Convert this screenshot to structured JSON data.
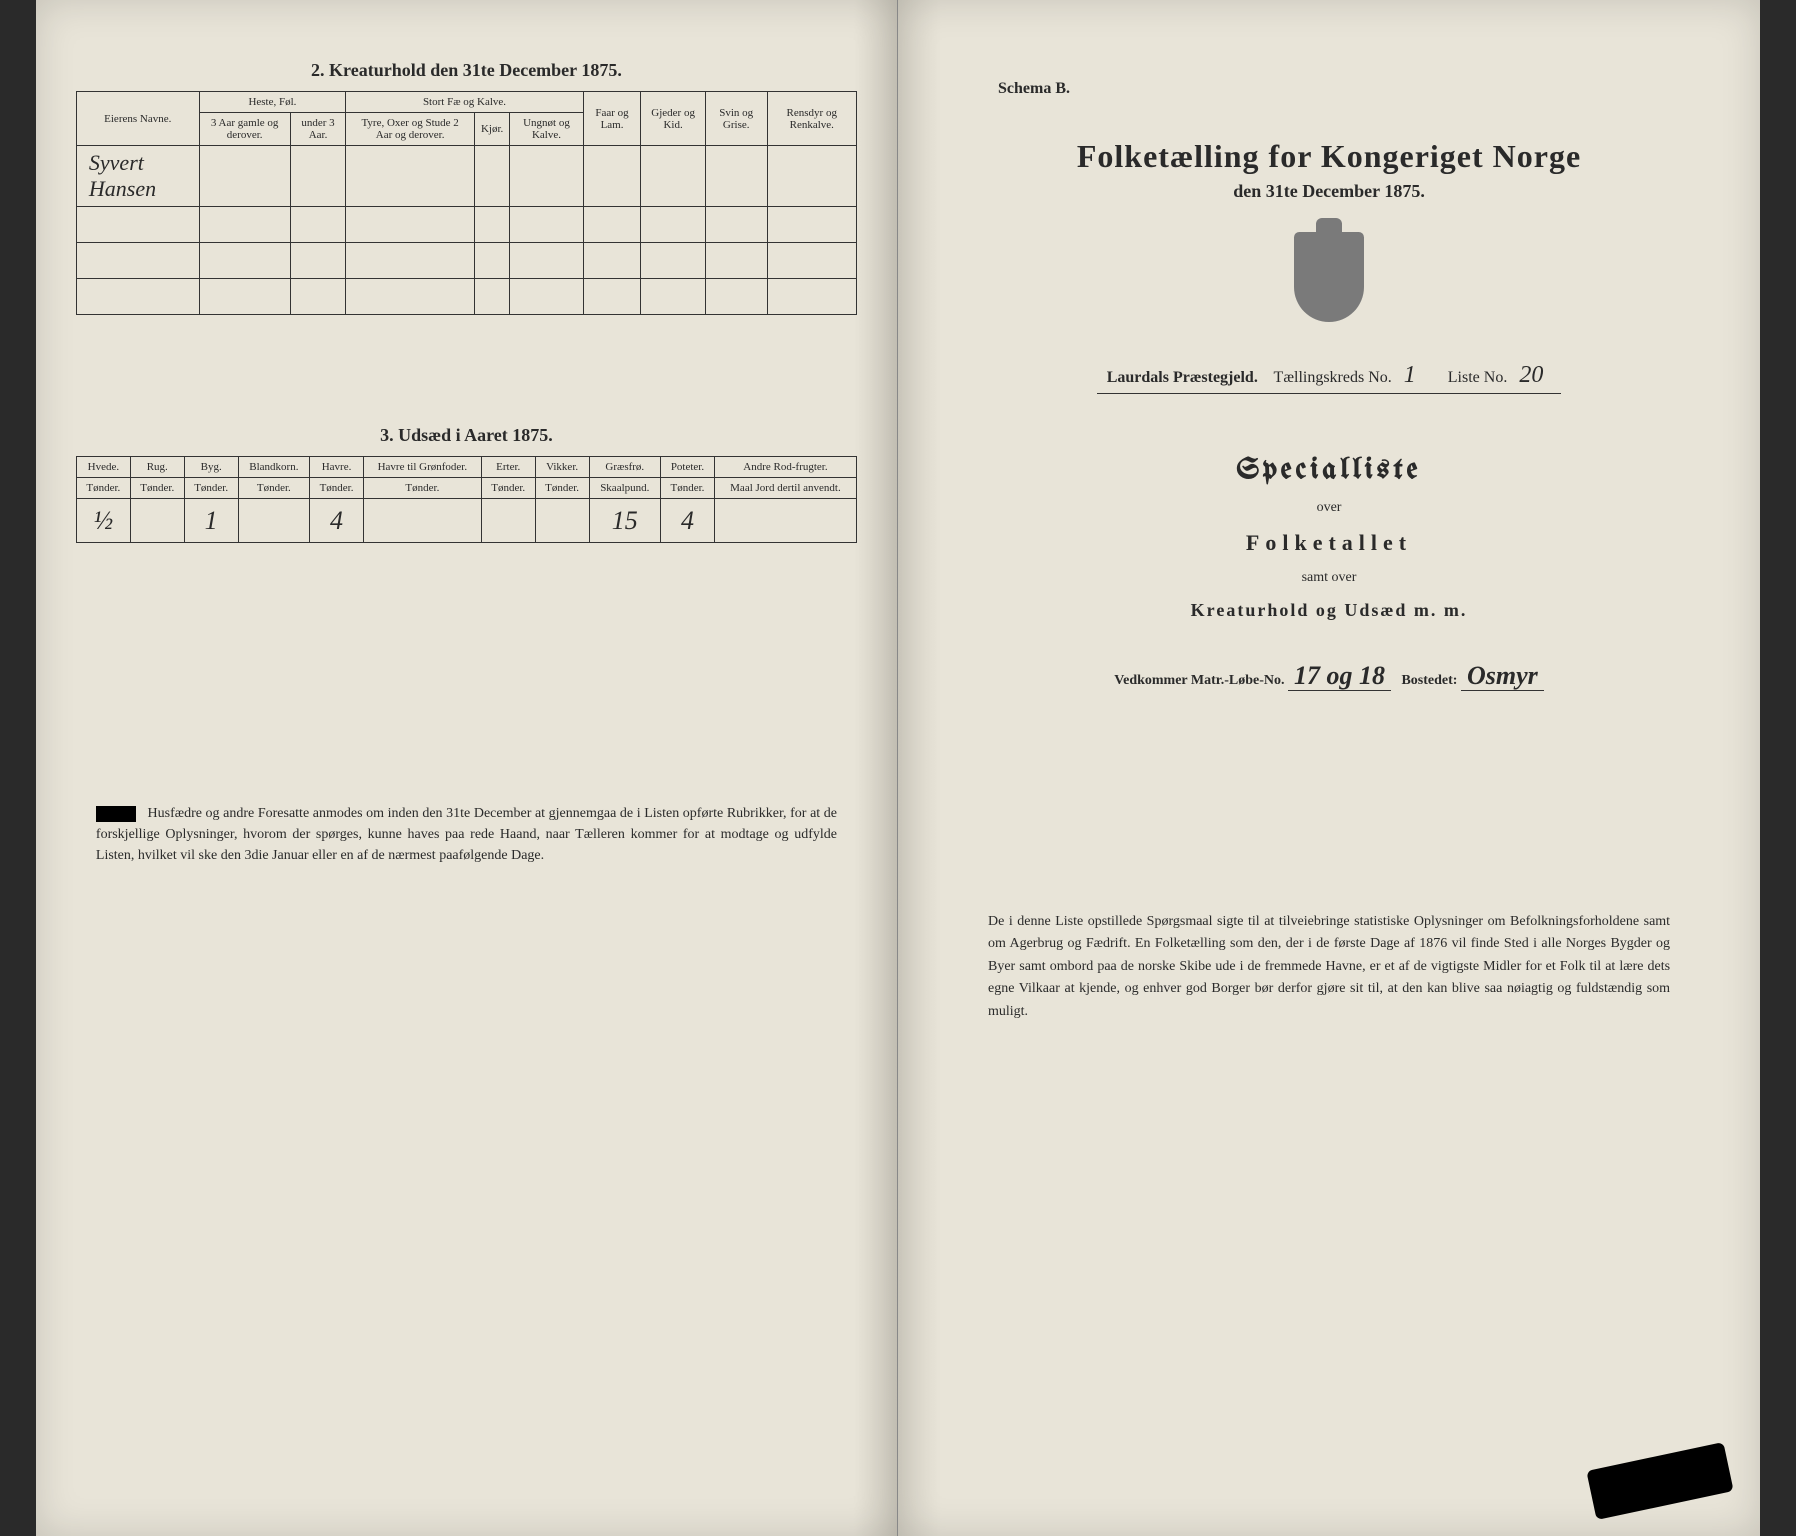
{
  "left": {
    "section2_title": "2. Kreaturhold den 31te December 1875.",
    "table2": {
      "col_eier": "Eierens Navne.",
      "grp_heste": "Heste, Føl.",
      "grp_stort": "Stort Fæ og Kalve.",
      "col_faar": "Faar og Lam.",
      "col_gjeder": "Gjeder og Kid.",
      "col_svin": "Svin og Grise.",
      "col_rensdyr": "Rensdyr og Renkalve.",
      "sub_h1": "3 Aar gamle og derover.",
      "sub_h2": "under 3 Aar.",
      "sub_s1": "Tyre, Oxer og Stude 2 Aar og derover.",
      "sub_s2": "Kjør.",
      "sub_s3": "Ungnøt og Kalve.",
      "owner": "Syvert Hansen"
    },
    "section3_title": "3. Udsæd i Aaret 1875.",
    "table3": {
      "headers": [
        "Hvede.",
        "Rug.",
        "Byg.",
        "Blandkorn.",
        "Havre.",
        "Havre til Grønfoder.",
        "Erter.",
        "Vikker.",
        "Græsfrø.",
        "Poteter.",
        "Andre Rod-frugter."
      ],
      "units": [
        "Tønder.",
        "Tønder.",
        "Tønder.",
        "Tønder.",
        "Tønder.",
        "Tønder.",
        "Tønder.",
        "Tønder.",
        "Skaalpund.",
        "Tønder.",
        "Maal Jord dertil anvendt."
      ],
      "values": [
        "½",
        "",
        "1",
        "",
        "4",
        "",
        "",
        "",
        "15",
        "4",
        ""
      ]
    },
    "footer": "Husfædre og andre Foresatte anmodes om inden den 31te December at gjennemgaa de i Listen opførte Rubrikker, for at de forskjellige Oplysninger, hvorom der spørges, kunne haves paa rede Haand, naar Tælleren kommer for at modtage og udfylde Listen, hvilket vil ske den 3die Januar eller en af de nærmest paafølgende Dage."
  },
  "right": {
    "schema": "Schema B.",
    "main_title": "Folketælling for Kongeriget Norge",
    "sub_date": "den 31te December 1875.",
    "praestegjeld_label": "Laurdals Præstegjeld.",
    "kreds_label": "Tællingskreds No.",
    "kreds_val": "1",
    "liste_label": "Liste No.",
    "liste_val": "20",
    "special": "Specialliste",
    "over": "over",
    "folketallet": "Folketallet",
    "samt": "samt over",
    "kreat": "Kreaturhold og Udsæd m. m.",
    "vedk_label": "Vedkommer Matr.-Løbe-No.",
    "vedk_no": "17 og 18",
    "bostedet_label": "Bostedet:",
    "bostedet_val": "Osmyr",
    "footer": "De i denne Liste opstillede Spørgsmaal sigte til at tilveiebringe statistiske Oplysninger om Befolkningsforholdene samt om Agerbrug og Fædrift. En Folketælling som den, der i de første Dage af 1876 vil finde Sted i alle Norges Bygder og Byer samt ombord paa de norske Skibe ude i de fremmede Havne, er et af de vigtigste Midler for et Folk til at lære dets egne Vilkaar at kjende, og enhver god Borger bør derfor gjøre sit til, at den kan blive saa nøiagtig og fuldstændig som muligt."
  }
}
